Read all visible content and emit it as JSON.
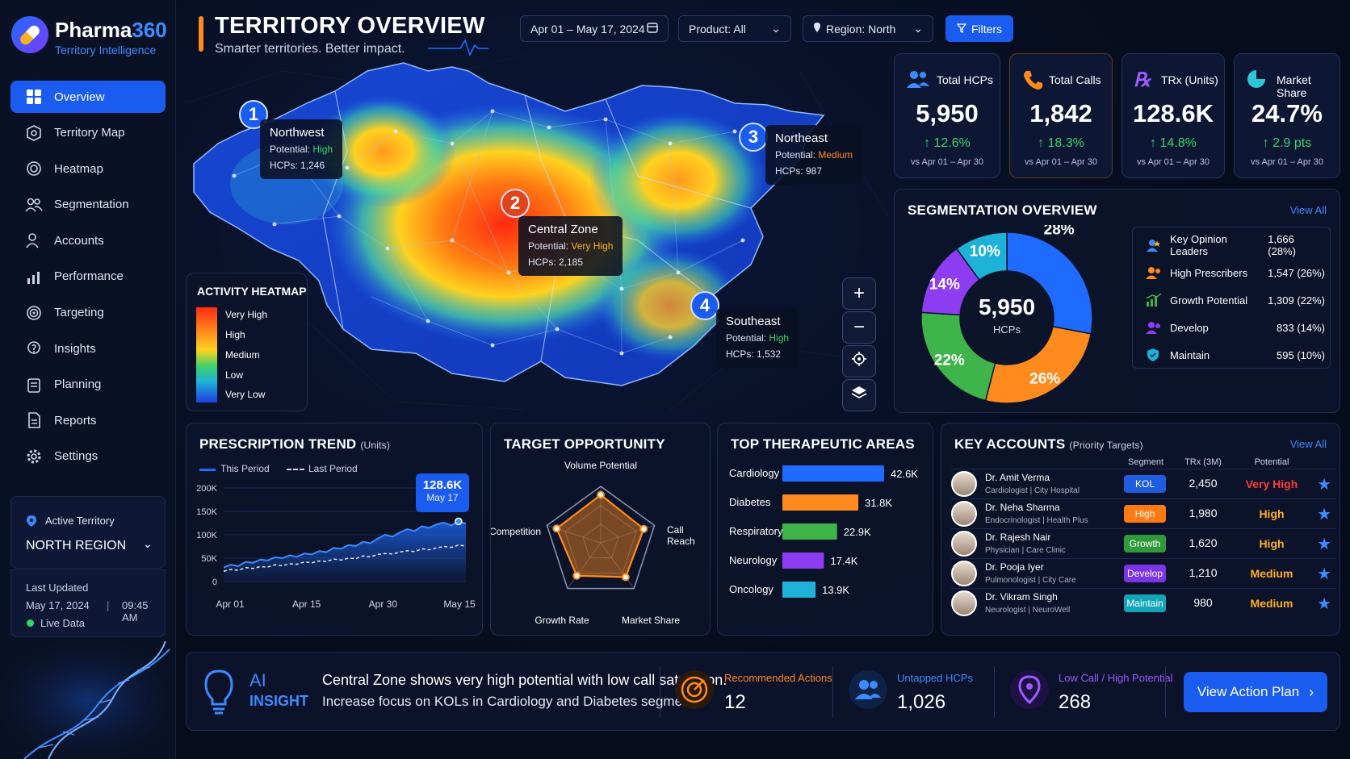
{
  "brand": {
    "name_a": "Pharma",
    "name_b": "360",
    "tagline": "Territory Intelligence"
  },
  "nav": [
    "Overview",
    "Territory Map",
    "Heatmap",
    "Segmentation",
    "Accounts",
    "Performance",
    "Targeting",
    "Insights",
    "Planning",
    "Reports",
    "Settings"
  ],
  "active_territory": {
    "label": "Active Territory",
    "value": "NORTH REGION"
  },
  "last_updated": {
    "label": "Last Updated",
    "date": "May 17, 2024",
    "time": "09:45 AM",
    "live": "Live Data"
  },
  "header": {
    "title": "TERRITORY OVERVIEW",
    "subtitle": "Smarter territories. Better impact."
  },
  "controls": {
    "date": "Apr 01 – May 17, 2024",
    "product": "Product: All",
    "region": "Region: North",
    "filters": "Filters"
  },
  "kpis": [
    {
      "title": "Total HCPs",
      "value": "5,950",
      "delta": "12.6%",
      "cmp": "vs Apr 01 – Apr 30",
      "color": "#3b8cff"
    },
    {
      "title": "Total Calls",
      "value": "1,842",
      "delta": "18.3%",
      "cmp": "vs Apr 01 – Apr 30",
      "color": "#ff8a1e"
    },
    {
      "title": "TRx (Units)",
      "value": "128.6K",
      "delta": "14.8%",
      "cmp": "vs Apr 01 – Apr 30",
      "color": "#9b5cff"
    },
    {
      "title": "Market Share",
      "value": "24.7%",
      "delta": "2.9 pts",
      "cmp": "vs Apr 01 – Apr 30",
      "color": "#2ec6d6"
    }
  ],
  "regions": [
    {
      "num": "1",
      "name": "Northwest",
      "potential_label": "Potential:",
      "potential": "High",
      "hcps": "HCPs: 1,246",
      "color": "#38d46a"
    },
    {
      "num": "2",
      "name": "Central Zone",
      "potential_label": "Potential:",
      "potential": "Very High",
      "hcps": "HCPs: 2,185",
      "color": "#ffb020"
    },
    {
      "num": "3",
      "name": "Northeast",
      "potential_label": "Potential:",
      "potential": "Medium",
      "hcps": "HCPs: 987",
      "color": "#ff8a1e"
    },
    {
      "num": "4",
      "name": "Southeast",
      "potential_label": "Potential:",
      "potential": "High",
      "hcps": "HCPs: 1,532",
      "color": "#38d46a"
    }
  ],
  "heat_legend": {
    "title": "ACTIVITY HEATMAP",
    "levels": [
      "Very High",
      "High",
      "Medium",
      "Low",
      "Very Low"
    ]
  },
  "segmentation": {
    "title": "SEGMENTATION OVERVIEW",
    "view_all": "View All",
    "center_value": "5,950",
    "center_label": "HCPs",
    "segments": [
      {
        "name": "Key Opinion Leaders",
        "value": "1,666 (28%)",
        "pct": 28,
        "label": "28%",
        "color": "#1f6bff"
      },
      {
        "name": "High Prescribers",
        "value": "1,547 (26%)",
        "pct": 26,
        "label": "26%",
        "color": "#ff8a1e"
      },
      {
        "name": "Growth Potential",
        "value": "1,309 (22%)",
        "pct": 22,
        "label": "22%",
        "color": "#3fb44a"
      },
      {
        "name": "Develop",
        "value": "833 (14%)",
        "pct": 14,
        "label": "14%",
        "color": "#8e3cf2"
      },
      {
        "name": "Maintain",
        "value": "595 (10%)",
        "pct": 10,
        "label": "10%",
        "color": "#1fb2d8"
      }
    ]
  },
  "chart_data": [
    {
      "type": "area",
      "title": "PRESCRIPTION TREND",
      "title_unit": "(Units)",
      "legend": [
        "This Period",
        "Last Period"
      ],
      "x_ticks": [
        "Apr 01",
        "Apr 15",
        "Apr 30",
        "May 15"
      ],
      "y_ticks": [
        "200K",
        "150K",
        "100K",
        "50K",
        "0"
      ],
      "ylim": [
        0,
        200000
      ],
      "callout": {
        "value": "128.6K",
        "date": "May 17"
      },
      "series": [
        {
          "name": "This Period",
          "values": [
            30000,
            36000,
            33000,
            42000,
            40000,
            47000,
            45000,
            52000,
            50000,
            56000,
            53000,
            60000,
            58000,
            65000,
            63000,
            72000,
            70000,
            78000,
            76000,
            85000,
            82000,
            92000,
            100000,
            96000,
            105000,
            112000,
            108000,
            118000,
            115000,
            122000,
            126000,
            120000,
            128600,
            124000
          ]
        },
        {
          "name": "Last Period",
          "values": [
            22000,
            26000,
            24000,
            30000,
            28000,
            32000,
            31000,
            36000,
            34000,
            38000,
            37000,
            42000,
            40000,
            44000,
            43000,
            48000,
            46000,
            50000,
            49000,
            55000,
            53000,
            58000,
            60000,
            59000,
            63000,
            66000,
            64000,
            70000,
            68000,
            72000,
            75000,
            73000,
            78000,
            76000
          ]
        }
      ]
    },
    {
      "type": "radar",
      "title": "TARGET OPPORTUNITY",
      "axes": [
        "Volume Potential",
        "Call Reach",
        "Market Share",
        "Growth Rate",
        "Competition"
      ],
      "values": [
        0.85,
        0.8,
        0.75,
        0.72,
        0.82
      ]
    },
    {
      "type": "bar",
      "title": "TOP THERAPEUTIC AREAS",
      "categories": [
        "Cardiology",
        "Diabetes",
        "Respiratory",
        "Neurology",
        "Oncology"
      ],
      "values": [
        42.6,
        31.8,
        22.9,
        17.4,
        13.9
      ],
      "labels": [
        "42.6K",
        "31.8K",
        "22.9K",
        "17.4K",
        "13.9K"
      ],
      "colors": [
        "#1f6bff",
        "#ff8a1e",
        "#3fb44a",
        "#8e3cf2",
        "#1fb2d8"
      ],
      "xlim": [
        0,
        42.6
      ]
    }
  ],
  "key_accounts": {
    "title": "KEY ACCOUNTS",
    "subtitle": "(Priority Targets)",
    "view_all": "View All",
    "cols": [
      "Segment",
      "TRx (3M)",
      "Potential"
    ],
    "rows": [
      {
        "name": "Dr. Amit Verma",
        "meta": "Cardiologist  |  City Hospital",
        "seg": "KOL",
        "seg_color": "#1f5ce0",
        "trx": "2,450",
        "pot": "Very High",
        "pot_color": "#ff3b3b"
      },
      {
        "name": "Dr. Neha Sharma",
        "meta": "Endocrinologist  |  Health Plus",
        "seg": "High",
        "seg_color": "#ff7a12",
        "trx": "1,980",
        "pot": "High",
        "pot_color": "#ffb020"
      },
      {
        "name": "Dr. Rajesh Nair",
        "meta": "Physician  |  Care Clinic",
        "seg": "Growth",
        "seg_color": "#2f9a3c",
        "trx": "1,620",
        "pot": "High",
        "pot_color": "#ffb020"
      },
      {
        "name": "Dr. Pooja Iyer",
        "meta": "Pulmonologist  |  City Care",
        "seg": "Develop",
        "seg_color": "#7b35e8",
        "trx": "1,210",
        "pot": "Medium",
        "pot_color": "#ffb020"
      },
      {
        "name": "Dr. Vikram Singh",
        "meta": "Neurologist  |  NeuroWell",
        "seg": "Maintain",
        "seg_color": "#12a5b8",
        "trx": "980",
        "pot": "Medium",
        "pot_color": "#ffb020"
      }
    ]
  },
  "insight": {
    "label_a": "AI",
    "label_b": "INSIGHT",
    "line1": "Central Zone shows very high potential with low call saturation.",
    "line2": "Increase focus on KOLs in Cardiology and Diabetes segments.",
    "metrics": [
      {
        "label": "Recommended Actions",
        "value": "12",
        "color": "#ff8a1e"
      },
      {
        "label": "Untapped HCPs",
        "value": "1,026",
        "color": "#3b8cff"
      },
      {
        "label": "Low Call / High Potential",
        "value": "268",
        "color": "#9b5cff"
      }
    ],
    "cta": "View Action Plan"
  }
}
